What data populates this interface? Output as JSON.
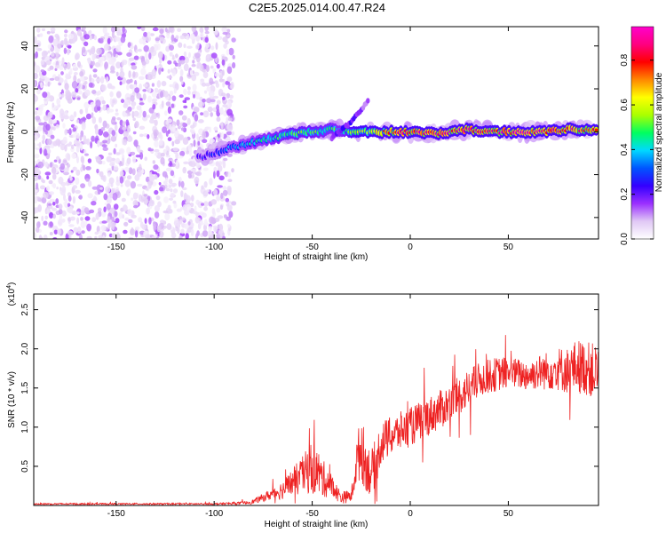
{
  "figure_title": "C2E5.2025.014.00.47.R24",
  "colors": {
    "signal": "#ee2222",
    "frame": "#000000",
    "background": "#ffffff"
  },
  "chart_data": [
    {
      "type": "heatmap",
      "title": "C2E5.2025.014.00.47.R24",
      "xlabel": "Height of straight line (km)",
      "ylabel": "Frequency (Hz)",
      "xlim": [
        -192,
        96
      ],
      "ylim": [
        -50,
        49
      ],
      "x_ticks": [
        -150,
        -100,
        -50,
        0,
        50
      ],
      "y_ticks": [
        -40,
        -20,
        0,
        20,
        40
      ],
      "colorbar": {
        "label": "Normalized spectral amplitude",
        "range": [
          0,
          0.95
        ],
        "ticks": [
          "0.0",
          "0.2",
          "0.4",
          "0.6",
          "0.8"
        ],
        "colormap": [
          "#ffffff",
          "#e0c8f5",
          "#9b30ff",
          "#3300ff",
          "#0055ff",
          "#00d8ff",
          "#00ff60",
          "#aaff00",
          "#ffff00",
          "#ff8800",
          "#ff0000",
          "#ff0080",
          "#ff00cc"
        ]
      },
      "noise_region": {
        "x": [
          -192,
          -90
        ],
        "frequency": [
          -50,
          49
        ],
        "amplitude": 0.08
      },
      "ridge": {
        "x": [
          -108,
          -100,
          -90,
          -80,
          -70,
          -60,
          -50,
          -40,
          -35,
          -30,
          -25,
          -20,
          -10,
          0,
          10,
          20,
          30,
          40,
          50,
          60,
          70,
          80,
          90,
          96
        ],
        "frequency": [
          -12,
          -10,
          -7,
          -5,
          -3,
          -1,
          0,
          1,
          1,
          0,
          0,
          0,
          0,
          0,
          -1,
          0,
          1,
          0,
          0,
          0,
          0,
          1,
          1,
          1
        ],
        "amplitude": [
          0.25,
          0.3,
          0.4,
          0.45,
          0.5,
          0.55,
          0.55,
          0.5,
          0.5,
          0.6,
          0.65,
          0.7,
          0.8,
          0.9,
          0.88,
          0.9,
          0.92,
          0.9,
          0.92,
          0.92,
          0.9,
          0.85,
          0.8,
          0.75
        ]
      },
      "branch": {
        "x": [
          -40,
          -35,
          -30,
          -25,
          -21
        ],
        "frequency": [
          -3,
          1,
          5,
          10,
          15
        ],
        "amplitude": [
          0.2,
          0.25,
          0.25,
          0.2,
          0.15
        ]
      }
    },
    {
      "type": "line",
      "xlabel": "Height of straight line (km)",
      "ylabel": "SNR (10 * v/v)",
      "y_multiplier": "(x10",
      "y_multiplier_exp": "4",
      "y_multiplier_close": ")",
      "xlim": [
        -192,
        96
      ],
      "ylim": [
        0,
        2.7
      ],
      "x_ticks": [
        -150,
        -100,
        -50,
        0,
        50
      ],
      "y_ticks": [
        "0.5",
        "1.0",
        "1.5",
        "2.0",
        "2.5"
      ],
      "series": [
        {
          "color": "#ee2222",
          "x": [
            -192,
            -150,
            -100,
            -85,
            -80,
            -75,
            -70,
            -65,
            -60,
            -55,
            -52,
            -50,
            -47,
            -45,
            -42,
            -40,
            -37,
            -35,
            -30,
            -27,
            -25,
            -23,
            -20,
            -17,
            -15,
            -10,
            -5,
            0,
            5,
            10,
            15,
            20,
            25,
            30,
            35,
            40,
            45,
            50,
            55,
            60,
            65,
            70,
            75,
            80,
            85,
            90,
            96
          ],
          "y": [
            0.02,
            0.02,
            0.02,
            0.03,
            0.05,
            0.1,
            0.15,
            0.2,
            0.3,
            0.38,
            0.45,
            0.5,
            0.42,
            0.35,
            0.3,
            0.25,
            0.15,
            0.1,
            0.12,
            0.6,
            0.75,
            0.55,
            0.4,
            0.6,
            0.8,
            0.88,
            0.95,
            1.0,
            1.08,
            1.15,
            1.22,
            1.3,
            1.4,
            1.5,
            1.6,
            1.65,
            1.68,
            1.7,
            1.68,
            1.66,
            1.7,
            1.72,
            1.75,
            1.72,
            1.78,
            1.75,
            1.7
          ],
          "spread": [
            0.01,
            0.01,
            0.01,
            0.02,
            0.03,
            0.05,
            0.08,
            0.12,
            0.18,
            0.25,
            0.3,
            0.35,
            0.3,
            0.25,
            0.2,
            0.15,
            0.1,
            0.08,
            0.08,
            0.3,
            0.45,
            0.35,
            0.3,
            0.3,
            0.28,
            0.25,
            0.25,
            0.25,
            0.25,
            0.25,
            0.25,
            0.25,
            0.25,
            0.25,
            0.22,
            0.22,
            0.22,
            0.2,
            0.2,
            0.2,
            0.22,
            0.25,
            0.28,
            0.3,
            0.35,
            0.35,
            0.35
          ]
        }
      ]
    }
  ]
}
